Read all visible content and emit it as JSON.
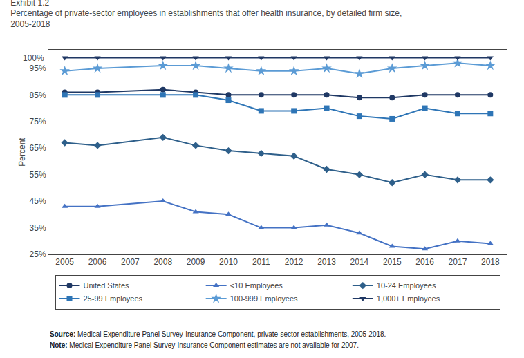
{
  "chart_data": {
    "type": "line",
    "title": "Exhibit 1.2",
    "subtitle": [
      "Percentage of private-sector employees in establishments that offer health insurance, by detailed firm size,",
      "2005-2018"
    ],
    "ylabel": "Percent",
    "x": [
      2005,
      2006,
      2008,
      2009,
      2010,
      2011,
      2012,
      2013,
      2014,
      2015,
      2016,
      2017,
      2018
    ],
    "series": [
      {
        "name": "United States",
        "color": "#1f3864",
        "marker": "circle",
        "values": [
          86,
          86,
          87,
          86,
          85,
          85,
          85,
          85,
          84,
          84,
          85,
          85,
          85
        ]
      },
      {
        "name": "<10 Employees",
        "color": "#4472c4",
        "marker": "triangle-up",
        "values": [
          43,
          43,
          45,
          41,
          40,
          35,
          35,
          36,
          33,
          28,
          27,
          30,
          29
        ]
      },
      {
        "name": "10-24 Employees",
        "color": "#2e5f8a",
        "marker": "diamond",
        "values": [
          67,
          66,
          69,
          66,
          64,
          63,
          62,
          57,
          55,
          52,
          55,
          53,
          53
        ]
      },
      {
        "name": "25-99 Employees",
        "color": "#2e75b6",
        "marker": "square",
        "values": [
          85,
          85,
          85,
          85,
          83,
          79,
          79,
          80,
          77,
          76,
          80,
          78,
          78
        ]
      },
      {
        "name": "100-999 Employees",
        "color": "#5b9bd5",
        "marker": "star",
        "values": [
          94,
          95,
          96,
          96,
          95,
          94,
          94,
          95,
          93,
          95,
          96,
          97,
          96
        ]
      },
      {
        "name": "1,000+ Employees",
        "color": "#203864",
        "marker": "triangle-down",
        "values": [
          99,
          99,
          99,
          99,
          99,
          99,
          99,
          99,
          99,
          99,
          99,
          99,
          99
        ]
      }
    ],
    "xlim": [
      2004.5,
      2018.5
    ],
    "xticks": [
      2005,
      2006,
      2007,
      2008,
      2009,
      2010,
      2011,
      2012,
      2013,
      2014,
      2015,
      2016,
      2017,
      2018
    ],
    "ylim": [
      25,
      102
    ],
    "yticks": [
      {
        "value": 25,
        "label": "25%"
      },
      {
        "value": 35,
        "label": "35%"
      },
      {
        "value": 45,
        "label": "45%"
      },
      {
        "value": 55,
        "label": "55%"
      },
      {
        "value": 65,
        "label": "65%"
      },
      {
        "value": 75,
        "label": "75%"
      },
      {
        "value": 85,
        "label": "85%"
      },
      {
        "value": 95,
        "label": "95%"
      }
    ],
    "annotations": [
      {
        "text": "100%",
        "y": 99
      }
    ],
    "source": "Source: Medical Expenditure Panel Survey-Insurance Component, private-sector establishments, 2005-2018.",
    "note": "Note: Medical Expenditure Panel Survey-Insurance Component estimates are not available for 2007.",
    "grid": false,
    "legend": "bottom"
  }
}
